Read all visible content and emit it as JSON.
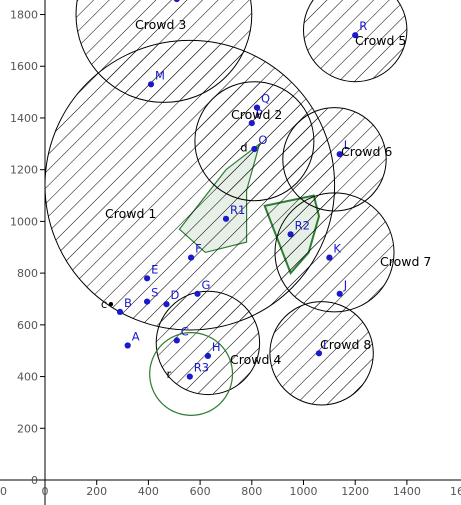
{
  "axes": {
    "x_ticks": [
      "0",
      "200",
      "400",
      "600",
      "800",
      "1000",
      "1200",
      "1400"
    ],
    "x_edge_left": "0",
    "x_edge_right": "16",
    "y_ticks": [
      "0",
      "200",
      "400",
      "600",
      "800",
      "1000",
      "1200",
      "1400",
      "1600",
      "1800"
    ]
  },
  "crowds": [
    {
      "label": "Crowd 1",
      "center": [
        560,
        1140
      ],
      "radius": 560
    },
    {
      "label": "Crowd 2",
      "center": [
        810,
        1310
      ],
      "radius": 230
    },
    {
      "label": "Crowd 3",
      "center": [
        460,
        1800
      ],
      "radius": 340
    },
    {
      "label": "Crowd 4",
      "center": [
        630,
        530
      ],
      "radius": 200
    },
    {
      "label": "Crowd 5",
      "center": [
        1200,
        1740
      ],
      "radius": 200
    },
    {
      "label": "Crowd 6",
      "center": [
        1120,
        1240
      ],
      "radius": 200
    },
    {
      "label": "Crowd 7",
      "center": [
        1120,
        880
      ],
      "radius": 230
    },
    {
      "label": "Crowd 8",
      "center": [
        1070,
        490
      ],
      "radius": 200
    }
  ],
  "points": [
    {
      "label": "A",
      "x": 320,
      "y": 520
    },
    {
      "label": "B",
      "x": 290,
      "y": 650
    },
    {
      "label": "C",
      "x": 510,
      "y": 540
    },
    {
      "label": "D",
      "x": 470,
      "y": 680
    },
    {
      "label": "E",
      "x": 395,
      "y": 780
    },
    {
      "label": "F",
      "x": 565,
      "y": 860
    },
    {
      "label": "G",
      "x": 590,
      "y": 720
    },
    {
      "label": "S",
      "x": 395,
      "y": 690
    },
    {
      "label": "H",
      "x": 630,
      "y": 480
    },
    {
      "label": "I",
      "x": 1060,
      "y": 490
    },
    {
      "label": "J",
      "x": 1140,
      "y": 720
    },
    {
      "label": "K",
      "x": 1100,
      "y": 860
    },
    {
      "label": "L",
      "x": 1140,
      "y": 1260
    },
    {
      "label": "M",
      "x": 410,
      "y": 1530
    },
    {
      "label": "N",
      "x": 510,
      "y": 1860
    },
    {
      "label": "O",
      "x": 810,
      "y": 1280
    },
    {
      "label": "P",
      "x": 800,
      "y": 1380
    },
    {
      "label": "Q",
      "x": 820,
      "y": 1440
    },
    {
      "label": "R",
      "x": 1200,
      "y": 1720
    },
    {
      "label": "R1",
      "x": 700,
      "y": 1010
    },
    {
      "label": "R2",
      "x": 950,
      "y": 950
    },
    {
      "label": "R3",
      "x": 560,
      "y": 400
    }
  ],
  "extra_labels": {
    "c": "c",
    "d": "d",
    "r": "r"
  },
  "regions": [
    {
      "name": "region-r1",
      "points": [
        [
          520,
          970
        ],
        [
          700,
          1200
        ],
        [
          830,
          1300
        ],
        [
          780,
          1120
        ],
        [
          780,
          920
        ],
        [
          620,
          880
        ]
      ]
    },
    {
      "name": "region-r2",
      "points": [
        [
          850,
          1060
        ],
        [
          1040,
          1100
        ],
        [
          1060,
          1020
        ],
        [
          1020,
          880
        ],
        [
          950,
          800
        ]
      ]
    }
  ],
  "green_circle": {
    "label": "r",
    "center": [
      565,
      410
    ],
    "radius": 160
  }
}
